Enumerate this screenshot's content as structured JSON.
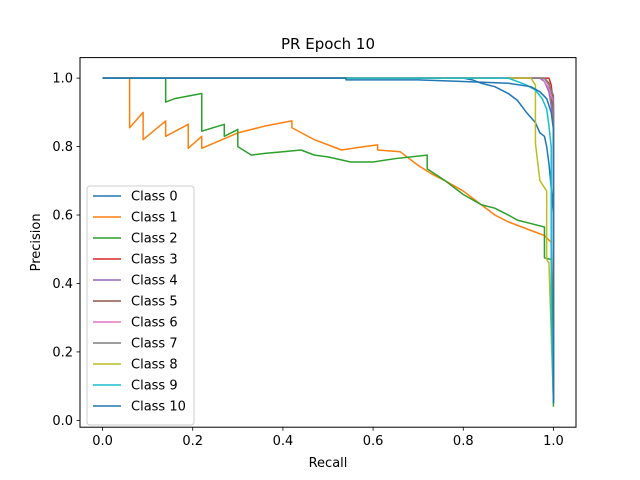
{
  "chart_data": {
    "type": "line",
    "title": "PR Epoch 10",
    "xlabel": "Recall",
    "ylabel": "Precision",
    "xlim": [
      -0.05,
      1.05
    ],
    "ylim": [
      -0.02,
      1.06
    ],
    "xticks": [
      0.0,
      0.2,
      0.4,
      0.6,
      0.8,
      1.0
    ],
    "xtick_labels": [
      "0.0",
      "0.2",
      "0.4",
      "0.6",
      "0.8",
      "1.0"
    ],
    "yticks": [
      0.0,
      0.2,
      0.4,
      0.6,
      0.8,
      1.0
    ],
    "ytick_labels": [
      "0.0",
      "0.2",
      "0.4",
      "0.6",
      "0.8",
      "1.0"
    ],
    "grid": false,
    "legend_position": "lower-left",
    "series": [
      {
        "name": "Class 0",
        "color": "#1f77b4",
        "points": [
          [
            0,
            1
          ],
          [
            0.8,
            1
          ],
          [
            0.82,
            0.995
          ],
          [
            0.84,
            0.985
          ],
          [
            0.87,
            0.975
          ],
          [
            0.9,
            0.955
          ],
          [
            0.92,
            0.935
          ],
          [
            0.94,
            0.9
          ],
          [
            0.96,
            0.87
          ],
          [
            0.97,
            0.84
          ],
          [
            0.98,
            0.83
          ],
          [
            0.985,
            0.8
          ],
          [
            0.99,
            0.75
          ],
          [
            0.995,
            0.68
          ],
          [
            1.0,
            0.6
          ],
          [
            1.0,
            0.05
          ]
        ]
      },
      {
        "name": "Class 1",
        "color": "#ff7f0e",
        "points": [
          [
            0,
            1
          ],
          [
            0.06,
            1
          ],
          [
            0.06,
            0.855
          ],
          [
            0.09,
            0.9
          ],
          [
            0.09,
            0.82
          ],
          [
            0.14,
            0.875
          ],
          [
            0.14,
            0.83
          ],
          [
            0.19,
            0.865
          ],
          [
            0.19,
            0.795
          ],
          [
            0.22,
            0.83
          ],
          [
            0.22,
            0.795
          ],
          [
            0.3,
            0.84
          ],
          [
            0.36,
            0.86
          ],
          [
            0.42,
            0.875
          ],
          [
            0.42,
            0.855
          ],
          [
            0.47,
            0.82
          ],
          [
            0.53,
            0.79
          ],
          [
            0.58,
            0.8
          ],
          [
            0.61,
            0.805
          ],
          [
            0.61,
            0.79
          ],
          [
            0.66,
            0.785
          ],
          [
            0.68,
            0.765
          ],
          [
            0.7,
            0.745
          ],
          [
            0.73,
            0.72
          ],
          [
            0.76,
            0.7
          ],
          [
            0.8,
            0.67
          ],
          [
            0.84,
            0.63
          ],
          [
            0.87,
            0.6
          ],
          [
            0.9,
            0.58
          ],
          [
            0.93,
            0.565
          ],
          [
            0.96,
            0.55
          ],
          [
            0.98,
            0.54
          ],
          [
            0.995,
            0.52
          ],
          [
            1.0,
            0.07
          ]
        ]
      },
      {
        "name": "Class 2",
        "color": "#2ca02c",
        "points": [
          [
            0,
            1
          ],
          [
            0.14,
            1
          ],
          [
            0.14,
            0.93
          ],
          [
            0.16,
            0.94
          ],
          [
            0.22,
            0.955
          ],
          [
            0.22,
            0.845
          ],
          [
            0.27,
            0.865
          ],
          [
            0.27,
            0.83
          ],
          [
            0.3,
            0.85
          ],
          [
            0.3,
            0.8
          ],
          [
            0.33,
            0.775
          ],
          [
            0.36,
            0.78
          ],
          [
            0.4,
            0.785
          ],
          [
            0.44,
            0.79
          ],
          [
            0.47,
            0.775
          ],
          [
            0.5,
            0.77
          ],
          [
            0.55,
            0.755
          ],
          [
            0.6,
            0.755
          ],
          [
            0.65,
            0.765
          ],
          [
            0.72,
            0.775
          ],
          [
            0.72,
            0.735
          ],
          [
            0.76,
            0.7
          ],
          [
            0.8,
            0.66
          ],
          [
            0.84,
            0.63
          ],
          [
            0.87,
            0.62
          ],
          [
            0.9,
            0.6
          ],
          [
            0.92,
            0.585
          ],
          [
            0.95,
            0.575
          ],
          [
            0.98,
            0.565
          ],
          [
            0.98,
            0.475
          ],
          [
            0.995,
            0.47
          ],
          [
            1.0,
            0.04
          ]
        ]
      },
      {
        "name": "Class 3",
        "color": "#d62728",
        "points": [
          [
            0,
            1
          ],
          [
            0.99,
            1
          ],
          [
            0.995,
            0.98
          ],
          [
            1.0,
            0.92
          ],
          [
            1.0,
            0.06
          ]
        ]
      },
      {
        "name": "Class 4",
        "color": "#9467bd",
        "points": [
          [
            0,
            1
          ],
          [
            0.97,
            1
          ],
          [
            0.98,
            0.99
          ],
          [
            0.99,
            0.96
          ],
          [
            0.995,
            0.92
          ],
          [
            1.0,
            0.87
          ],
          [
            1.0,
            0.06
          ]
        ]
      },
      {
        "name": "Class 5",
        "color": "#8c564b",
        "points": [
          [
            0,
            1
          ],
          [
            0.98,
            1
          ],
          [
            0.99,
            0.985
          ],
          [
            0.995,
            0.95
          ],
          [
            1.0,
            0.9
          ],
          [
            1.0,
            0.06
          ]
        ]
      },
      {
        "name": "Class 6",
        "color": "#e377c2",
        "points": [
          [
            0,
            1
          ],
          [
            0.975,
            1
          ],
          [
            0.99,
            0.97
          ],
          [
            1.0,
            0.93
          ],
          [
            1.0,
            0.06
          ]
        ]
      },
      {
        "name": "Class 7",
        "color": "#7f7f7f",
        "points": [
          [
            0,
            1
          ],
          [
            0.98,
            1
          ],
          [
            0.99,
            0.98
          ],
          [
            1.0,
            0.95
          ],
          [
            1.0,
            0.06
          ]
        ]
      },
      {
        "name": "Class 8",
        "color": "#bcbd22",
        "points": [
          [
            0,
            1
          ],
          [
            0.95,
            1
          ],
          [
            0.96,
            0.98
          ],
          [
            0.96,
            0.81
          ],
          [
            0.97,
            0.7
          ],
          [
            0.975,
            0.69
          ],
          [
            0.985,
            0.67
          ],
          [
            0.985,
            0.47
          ],
          [
            0.99,
            0.46
          ],
          [
            1.0,
            0.05
          ]
        ]
      },
      {
        "name": "Class 9",
        "color": "#17becf",
        "points": [
          [
            0,
            1
          ],
          [
            0.9,
            1
          ],
          [
            0.92,
            0.99
          ],
          [
            0.94,
            0.98
          ],
          [
            0.96,
            0.965
          ],
          [
            0.975,
            0.94
          ],
          [
            0.985,
            0.91
          ],
          [
            0.99,
            0.86
          ],
          [
            0.995,
            0.8
          ],
          [
            0.995,
            0.33
          ],
          [
            1.0,
            0.05
          ]
        ]
      },
      {
        "name": "Class 10",
        "color": "#1f77b4",
        "points": [
          [
            0,
            1
          ],
          [
            0.54,
            1
          ],
          [
            0.54,
            0.995
          ],
          [
            0.7,
            0.995
          ],
          [
            0.8,
            0.99
          ],
          [
            0.9,
            0.985
          ],
          [
            0.95,
            0.975
          ],
          [
            0.97,
            0.96
          ],
          [
            0.985,
            0.94
          ],
          [
            0.995,
            0.9
          ],
          [
            1.0,
            0.85
          ],
          [
            1.0,
            0.05
          ]
        ]
      }
    ]
  }
}
